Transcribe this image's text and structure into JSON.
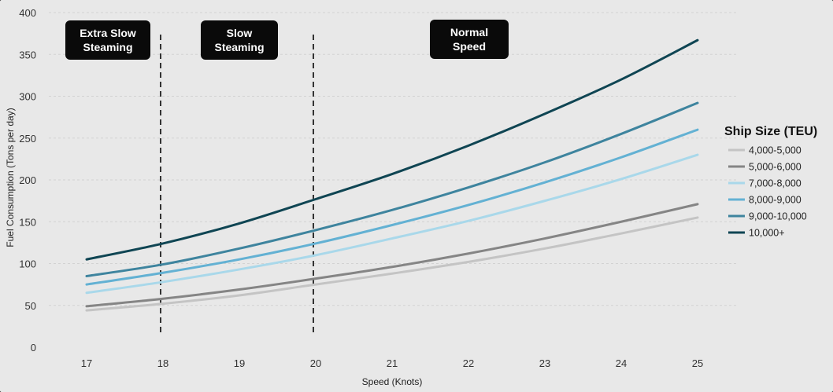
{
  "chart_data": {
    "type": "line",
    "x": [
      17,
      18,
      19,
      20,
      21,
      22,
      23,
      24,
      25
    ],
    "xlabel": "Speed (Knots)",
    "ylabel": "Fuel Consumption (Tons per day)",
    "xlim": [
      17,
      25
    ],
    "ylim": [
      0,
      400
    ],
    "yticks": [
      0,
      50,
      100,
      150,
      200,
      250,
      300,
      350,
      400
    ],
    "grid": "horizontal",
    "legend": {
      "title": "Ship Size (TEU)",
      "placement": "right"
    },
    "series": [
      {
        "name": "4,000-5,000",
        "color": "#c4c4c4",
        "values": [
          44,
          52,
          62,
          75,
          88,
          102,
          118,
          136,
          155
        ]
      },
      {
        "name": "5,000-6,000",
        "color": "#858585",
        "values": [
          49,
          58,
          69,
          82,
          96,
          112,
          130,
          150,
          171
        ]
      },
      {
        "name": "7,000-8,000",
        "color": "#a9d8ea",
        "values": [
          65,
          78,
          93,
          110,
          130,
          151,
          175,
          201,
          230
        ]
      },
      {
        "name": "8,000-9,000",
        "color": "#63b1d3",
        "values": [
          75,
          89,
          105,
          124,
          146,
          170,
          197,
          227,
          260
        ]
      },
      {
        "name": "9,000-10,000",
        "color": "#3e849e",
        "values": [
          85,
          99,
          118,
          140,
          164,
          191,
          221,
          255,
          292
        ]
      },
      {
        "name": "10,000+",
        "color": "#0f4553",
        "values": [
          105,
          124,
          148,
          177,
          207,
          241,
          279,
          320,
          367
        ]
      }
    ],
    "reference_lines": [
      {
        "x": 18
      },
      {
        "x": 20
      }
    ],
    "annotations": [
      {
        "id": "extra",
        "text": "Extra Slow\nSteaming"
      },
      {
        "id": "slow",
        "text": "Slow\nSteaming"
      },
      {
        "id": "normal",
        "text": "Normal\nSpeed"
      }
    ]
  }
}
